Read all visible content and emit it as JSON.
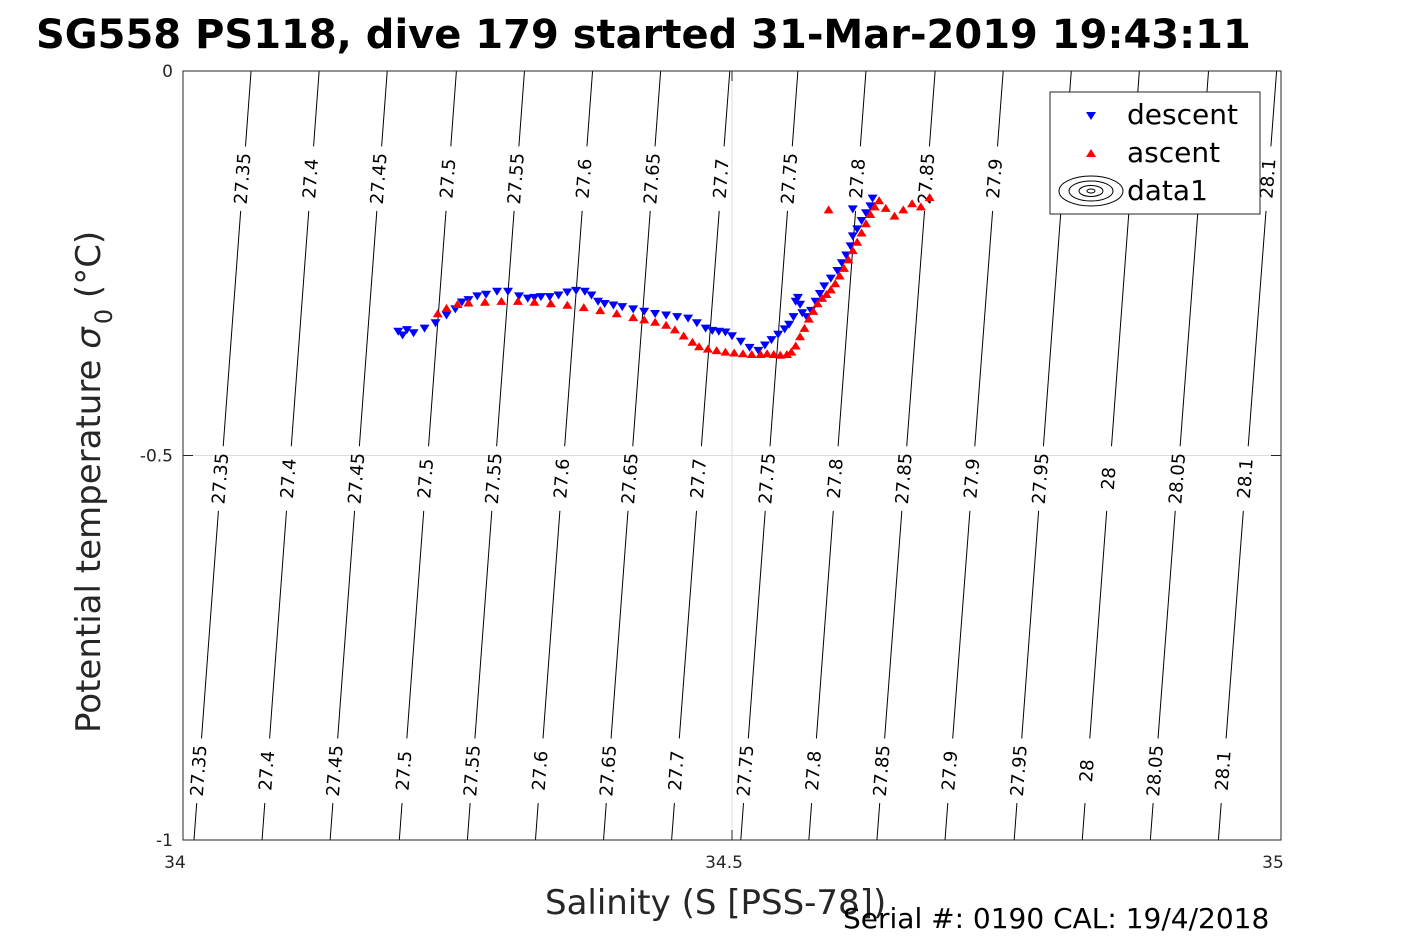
{
  "chart_data": {
    "type": "scatter",
    "title": "SG558 PS118, dive 179 started 31-Mar-2019 19:43:11",
    "xlabel": "Salinity (S [PSS-78])",
    "ylabel_main": "Potential temperature ",
    "ylabel_symbol": "σ",
    "ylabel_sub": "0",
    "ylabel_unit": " (°C)",
    "xlim": [
      34,
      35
    ],
    "ylim": [
      -1,
      0
    ],
    "x_ticks": [
      {
        "value": 34,
        "label": "34"
      },
      {
        "value": 34.5,
        "label": "34.5"
      },
      {
        "value": 35,
        "label": "35"
      }
    ],
    "y_ticks": [
      {
        "value": 0,
        "label": "0"
      },
      {
        "value": -0.5,
        "label": "-0.5"
      },
      {
        "value": -1,
        "label": "-1"
      }
    ],
    "grid": true,
    "legend_position": "top-right",
    "legend": [
      {
        "name": "descent",
        "marker": "triangle-down",
        "color": "#0000ff"
      },
      {
        "name": "ascent",
        "marker": "triangle-up",
        "color": "#ff0000"
      },
      {
        "name": "data1",
        "marker": "contour-ellipses",
        "color": "#000000"
      }
    ],
    "contours": {
      "levels": [
        27.35,
        27.4,
        27.45,
        27.5,
        27.55,
        27.6,
        27.65,
        27.7,
        27.75,
        27.8,
        27.85,
        27.9,
        27.95,
        28,
        28.05,
        28.1
      ],
      "level_labels": [
        "27.35",
        "27.4",
        "27.45",
        "27.5",
        "27.55",
        "27.6",
        "27.65",
        "27.7",
        "27.75",
        "27.8",
        "27.85",
        "27.9",
        "27.95",
        "28",
        "28.05",
        "28.1"
      ],
      "salinity_at_top": [
        34.062,
        34.124,
        34.186,
        34.249,
        34.311,
        34.373,
        34.435,
        34.498,
        34.56,
        34.622,
        34.685,
        34.747,
        34.809,
        34.871,
        34.934,
        34.996
      ],
      "salinity_at_bottom": [
        34.01,
        34.072,
        34.134,
        34.197,
        34.259,
        34.321,
        34.383,
        34.445,
        34.508,
        34.57,
        34.632,
        34.694,
        34.757,
        34.819,
        34.881,
        34.943
      ],
      "upper_label_levels": [
        "27.35",
        "27.4",
        "27.45",
        "27.5",
        "27.55",
        "27.6",
        "27.65",
        "27.7",
        "27.75",
        "27.8",
        "27.85",
        "27.9",
        "27.95",
        "28",
        "28.05",
        "28.1"
      ],
      "upper_label_temps": [
        -0.14,
        -0.14,
        -0.14,
        -0.14,
        -0.14,
        -0.14,
        -0.14,
        -0.14,
        -0.14,
        -0.14,
        -0.14,
        -0.14,
        -0.14,
        -0.14,
        -0.14,
        -0.14
      ],
      "middle_label_temps": [
        -0.53,
        -0.53,
        -0.53,
        -0.53,
        -0.53,
        -0.53,
        -0.53,
        -0.53,
        -0.53,
        -0.53,
        -0.53,
        -0.53,
        -0.53,
        -0.53,
        -0.53,
        -0.53
      ],
      "lower_label_temps": [
        -0.91,
        -0.91,
        -0.91,
        -0.91,
        -0.91,
        -0.91,
        -0.91,
        -0.91,
        -0.91,
        -0.91,
        -0.91,
        -0.91,
        -0.91,
        -0.91,
        -0.91,
        -0.91
      ]
    },
    "series": [
      {
        "name": "descent",
        "color": "#0000ff",
        "x": [
          34.196,
          34.2,
          34.204,
          34.21,
          34.22,
          34.23,
          34.24,
          34.248,
          34.254,
          34.26,
          34.268,
          34.276,
          34.286,
          34.296,
          34.306,
          34.314,
          34.32,
          34.326,
          34.334,
          34.342,
          34.35,
          34.358,
          34.366,
          34.372,
          34.378,
          34.384,
          34.392,
          34.4,
          34.41,
          34.42,
          34.43,
          34.44,
          34.45,
          34.46,
          34.468,
          34.476,
          34.482,
          34.488,
          34.494,
          34.5,
          34.508,
          34.516,
          34.524,
          34.53,
          34.536,
          34.542,
          34.548,
          34.552,
          34.556,
          34.558,
          34.56,
          34.562,
          34.564,
          34.568,
          34.572,
          34.576,
          34.58,
          34.584,
          34.59,
          34.596,
          34.6,
          34.604,
          34.608,
          34.61,
          34.614,
          34.618,
          34.622,
          34.626,
          34.628,
          34.61
        ],
        "y": [
          -0.339,
          -0.344,
          -0.337,
          -0.341,
          -0.335,
          -0.328,
          -0.318,
          -0.31,
          -0.301,
          -0.298,
          -0.293,
          -0.291,
          -0.287,
          -0.287,
          -0.293,
          -0.296,
          -0.295,
          -0.294,
          -0.294,
          -0.292,
          -0.288,
          -0.286,
          -0.287,
          -0.292,
          -0.3,
          -0.303,
          -0.305,
          -0.307,
          -0.31,
          -0.313,
          -0.316,
          -0.318,
          -0.32,
          -0.322,
          -0.328,
          -0.335,
          -0.338,
          -0.339,
          -0.34,
          -0.345,
          -0.352,
          -0.36,
          -0.364,
          -0.357,
          -0.35,
          -0.343,
          -0.336,
          -0.33,
          -0.32,
          -0.3,
          -0.295,
          -0.304,
          -0.315,
          -0.32,
          -0.312,
          -0.3,
          -0.29,
          -0.28,
          -0.27,
          -0.26,
          -0.25,
          -0.24,
          -0.228,
          -0.215,
          -0.206,
          -0.195,
          -0.185,
          -0.176,
          -0.166,
          -0.18
        ]
      },
      {
        "name": "ascent",
        "color": "#ff0000",
        "x": [
          34.232,
          34.24,
          34.25,
          34.26,
          34.275,
          34.29,
          34.305,
          34.32,
          34.335,
          34.35,
          34.365,
          34.38,
          34.395,
          34.41,
          34.42,
          34.43,
          34.44,
          34.448,
          34.456,
          34.464,
          34.47,
          34.478,
          34.486,
          34.494,
          34.502,
          34.51,
          34.518,
          34.526,
          34.532,
          34.538,
          34.544,
          34.55,
          34.554,
          34.558,
          34.562,
          34.566,
          34.57,
          34.574,
          34.578,
          34.582,
          34.586,
          34.59,
          34.594,
          34.598,
          34.602,
          34.606,
          34.61,
          34.614,
          34.618,
          34.622,
          34.626,
          34.63,
          34.634,
          34.64,
          34.648,
          34.656,
          34.664,
          34.672,
          34.68,
          34.588
        ],
        "y": [
          -0.315,
          -0.308,
          -0.303,
          -0.301,
          -0.3,
          -0.299,
          -0.299,
          -0.3,
          -0.302,
          -0.304,
          -0.307,
          -0.311,
          -0.315,
          -0.32,
          -0.323,
          -0.326,
          -0.33,
          -0.336,
          -0.344,
          -0.352,
          -0.358,
          -0.361,
          -0.363,
          -0.365,
          -0.366,
          -0.367,
          -0.368,
          -0.368,
          -0.367,
          -0.368,
          -0.369,
          -0.368,
          -0.365,
          -0.357,
          -0.345,
          -0.334,
          -0.322,
          -0.312,
          -0.302,
          -0.295,
          -0.29,
          -0.284,
          -0.276,
          -0.266,
          -0.256,
          -0.245,
          -0.233,
          -0.222,
          -0.21,
          -0.198,
          -0.186,
          -0.176,
          -0.168,
          -0.178,
          -0.188,
          -0.18,
          -0.172,
          -0.176,
          -0.164,
          -0.18
        ]
      }
    ]
  },
  "footer": {
    "serial_text": "Serial #: 0190  CAL: 19/4/2018"
  }
}
